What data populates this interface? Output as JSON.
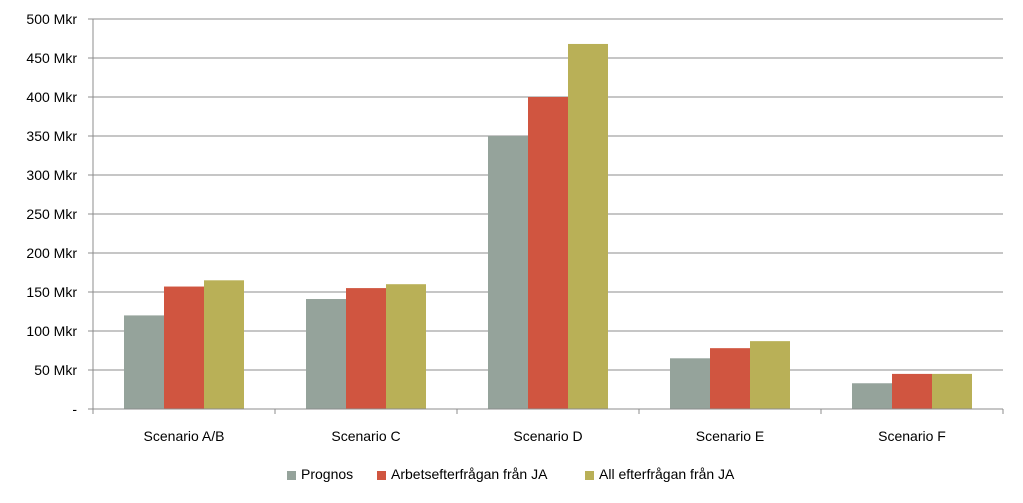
{
  "chart_data": {
    "type": "bar",
    "title": "",
    "xlabel": "",
    "ylabel": "",
    "categories": [
      "Scenario A/B",
      "Scenario C",
      "Scenario D",
      "Scenario E",
      "Scenario F"
    ],
    "series": [
      {
        "name": "Prognos",
        "color": "#95a39b",
        "values": [
          120,
          141,
          350,
          65,
          33
        ]
      },
      {
        "name": "Arbetsefterfrågan från JA",
        "color": "#d05540",
        "values": [
          157,
          155,
          400,
          78,
          45
        ]
      },
      {
        "name": "All efterfrågan från JA",
        "color": "#b9b057",
        "values": [
          165,
          160,
          468,
          87,
          45
        ]
      }
    ],
    "ylim": [
      0,
      500
    ],
    "yticks": [
      0,
      50,
      100,
      150,
      200,
      250,
      300,
      350,
      400,
      450,
      500
    ],
    "ytick_labels": [
      "-",
      "50 Mkr",
      "100 Mkr",
      "150 Mkr",
      "200 Mkr",
      "250 Mkr",
      "300 Mkr",
      "350 Mkr",
      "400 Mkr",
      "450 Mkr",
      "500 Mkr"
    ],
    "grid": true,
    "legend_position": "bottom"
  }
}
